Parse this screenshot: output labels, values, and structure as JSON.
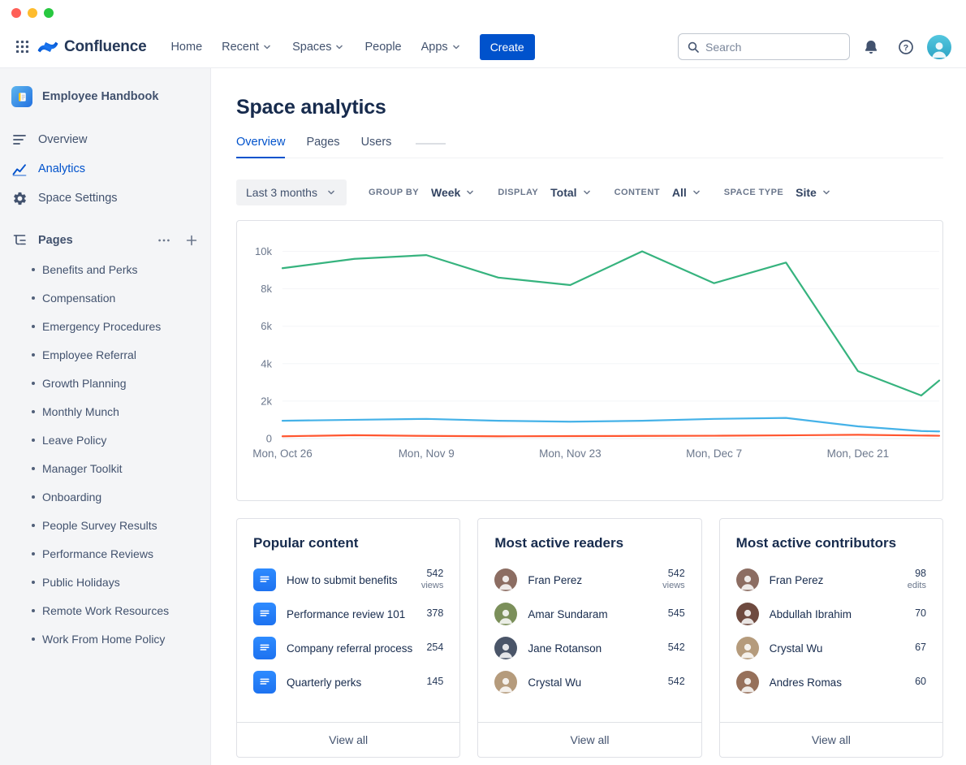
{
  "window": {
    "traffic_lights": [
      "#FF5F57",
      "#FEBC2E",
      "#28C840"
    ]
  },
  "topnav": {
    "brand": "Confluence",
    "items": [
      {
        "label": "Home",
        "chevron": false
      },
      {
        "label": "Recent",
        "chevron": true
      },
      {
        "label": "Spaces",
        "chevron": true
      },
      {
        "label": "People",
        "chevron": false
      },
      {
        "label": "Apps",
        "chevron": true
      }
    ],
    "create_label": "Create",
    "search_placeholder": "Search"
  },
  "sidebar": {
    "space_name": "Employee Handbook",
    "nav": [
      {
        "label": "Overview",
        "icon": "overview-icon",
        "active": false
      },
      {
        "label": "Analytics",
        "icon": "analytics-icon",
        "active": true
      },
      {
        "label": "Space Settings",
        "icon": "gear-icon",
        "active": false
      }
    ],
    "pages_header": "Pages",
    "pages": [
      "Benefits and Perks",
      "Compensation",
      "Emergency Procedures",
      "Employee Referral",
      "Growth Planning",
      "Monthly Munch",
      "Leave Policy",
      "Manager Toolkit",
      "Onboarding",
      "People Survey Results",
      "Performance Reviews",
      "Public Holidays",
      "Remote Work Resources",
      "Work From Home Policy"
    ]
  },
  "main": {
    "title": "Space analytics",
    "tabs": [
      {
        "label": "Overview",
        "active": true
      },
      {
        "label": "Pages",
        "active": false
      },
      {
        "label": "Users",
        "active": false
      }
    ],
    "filters": {
      "date_range": "Last 3 months",
      "controls": [
        {
          "label": "GROUP BY",
          "value": "Week"
        },
        {
          "label": "DISPLAY",
          "value": "Total"
        },
        {
          "label": "CONTENT",
          "value": "All"
        },
        {
          "label": "SPACE TYPE",
          "value": "Site"
        }
      ]
    }
  },
  "chart_data": {
    "type": "line",
    "x_unit": "week",
    "x": [
      0,
      1,
      2,
      3,
      4,
      5,
      6,
      7,
      8,
      8.88,
      9.13
    ],
    "x_tick_positions": [
      0,
      2,
      4,
      6,
      8
    ],
    "x_tick_labels": [
      "Mon, Oct 26",
      "Mon, Nov 9",
      "Mon, Nov 23",
      "Mon, Dec 7",
      "Mon, Dec 21"
    ],
    "y_tick_values": [
      0,
      2000,
      4000,
      6000,
      8000,
      10000
    ],
    "y_tick_labels": [
      "0",
      "2k",
      "4k",
      "6k",
      "8k",
      "10k"
    ],
    "ylim": [
      0,
      10500
    ],
    "grid": "faint-horizontal",
    "legend": "none",
    "series": [
      {
        "name": "green",
        "color": "#36B37E",
        "values": [
          9100,
          9600,
          9800,
          8600,
          8200,
          10000,
          8300,
          9400,
          3600,
          2300,
          3100
        ]
      },
      {
        "name": "blue",
        "color": "#45B2E8",
        "values": [
          950,
          1000,
          1050,
          950,
          900,
          950,
          1050,
          1100,
          650,
          400,
          380
        ]
      },
      {
        "name": "red",
        "color": "#FF5630",
        "values": [
          120,
          180,
          140,
          120,
          130,
          140,
          150,
          170,
          200,
          160,
          150
        ]
      }
    ]
  },
  "cards": [
    {
      "title": "Popular content",
      "type": "content",
      "footer": "View all",
      "rows": [
        {
          "label": "How to submit benefits",
          "value": "542",
          "unit": "views"
        },
        {
          "label": "Performance review 101",
          "value": "378"
        },
        {
          "label": "Company referral process",
          "value": "254"
        },
        {
          "label": "Quarterly perks",
          "value": "145"
        }
      ]
    },
    {
      "title": "Most active readers",
      "type": "people",
      "footer": "View all",
      "rows": [
        {
          "label": "Fran Perez",
          "value": "542",
          "unit": "views",
          "avatar_color": "#8C6D62"
        },
        {
          "label": "Amar Sundaram",
          "value": "545",
          "avatar_color": "#7B8F5A"
        },
        {
          "label": "Jane Rotanson",
          "value": "542",
          "avatar_color": "#4A5568"
        },
        {
          "label": "Crystal Wu",
          "value": "542",
          "avatar_color": "#B59B7C"
        }
      ]
    },
    {
      "title": "Most active contributors",
      "type": "people",
      "footer": "View all",
      "rows": [
        {
          "label": "Fran Perez",
          "value": "98",
          "unit": "edits",
          "avatar_color": "#8C6D62"
        },
        {
          "label": "Abdullah Ibrahim",
          "value": "70",
          "avatar_color": "#6E4A3F"
        },
        {
          "label": "Crystal Wu",
          "value": "67",
          "avatar_color": "#B59B7C"
        },
        {
          "label": "Andres Romas",
          "value": "60",
          "avatar_color": "#96705A"
        }
      ]
    }
  ],
  "colors": {
    "accent": "#0052CC",
    "sidebar_bg": "#F4F5F7",
    "border": "#DFE1E6",
    "text_primary": "#172B4D",
    "text_secondary": "#42526E",
    "text_muted": "#6B778C"
  }
}
